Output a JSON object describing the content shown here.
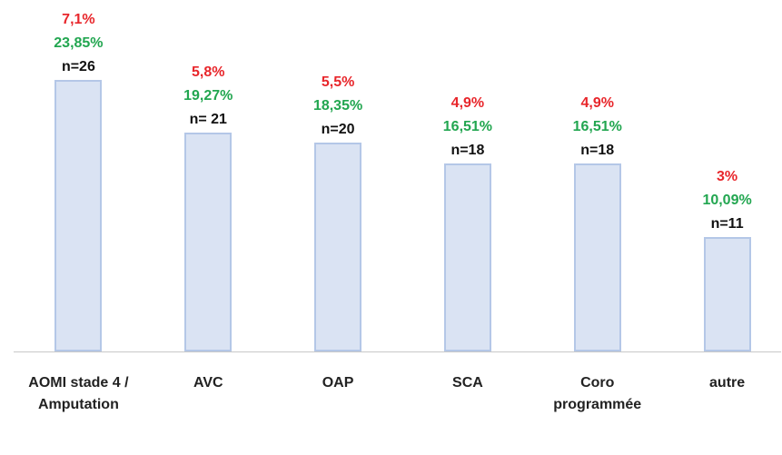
{
  "chart_data": {
    "type": "bar",
    "categories": [
      "AOMI stade 4 / Amputation",
      "AVC",
      "OAP",
      "SCA",
      "Coro programmée",
      "autre"
    ],
    "values": [
      26,
      21,
      20,
      18,
      18,
      11
    ],
    "value_labels": [
      "n=26",
      "n= 21",
      "n=20",
      "n=18",
      "n=18",
      "n=11"
    ],
    "share_labels": [
      "23,85%",
      "19,27%",
      "18,35%",
      "16,51%",
      "16,51%",
      "10,09%"
    ],
    "rate_labels": [
      "7,1%",
      "5,8%",
      "5,5%",
      "4,9%",
      "4,9%",
      "3%"
    ],
    "color": "#dae3f3",
    "share_color": "#22a650",
    "rate_color": "#e8262b",
    "ylim": [
      0,
      26
    ]
  }
}
